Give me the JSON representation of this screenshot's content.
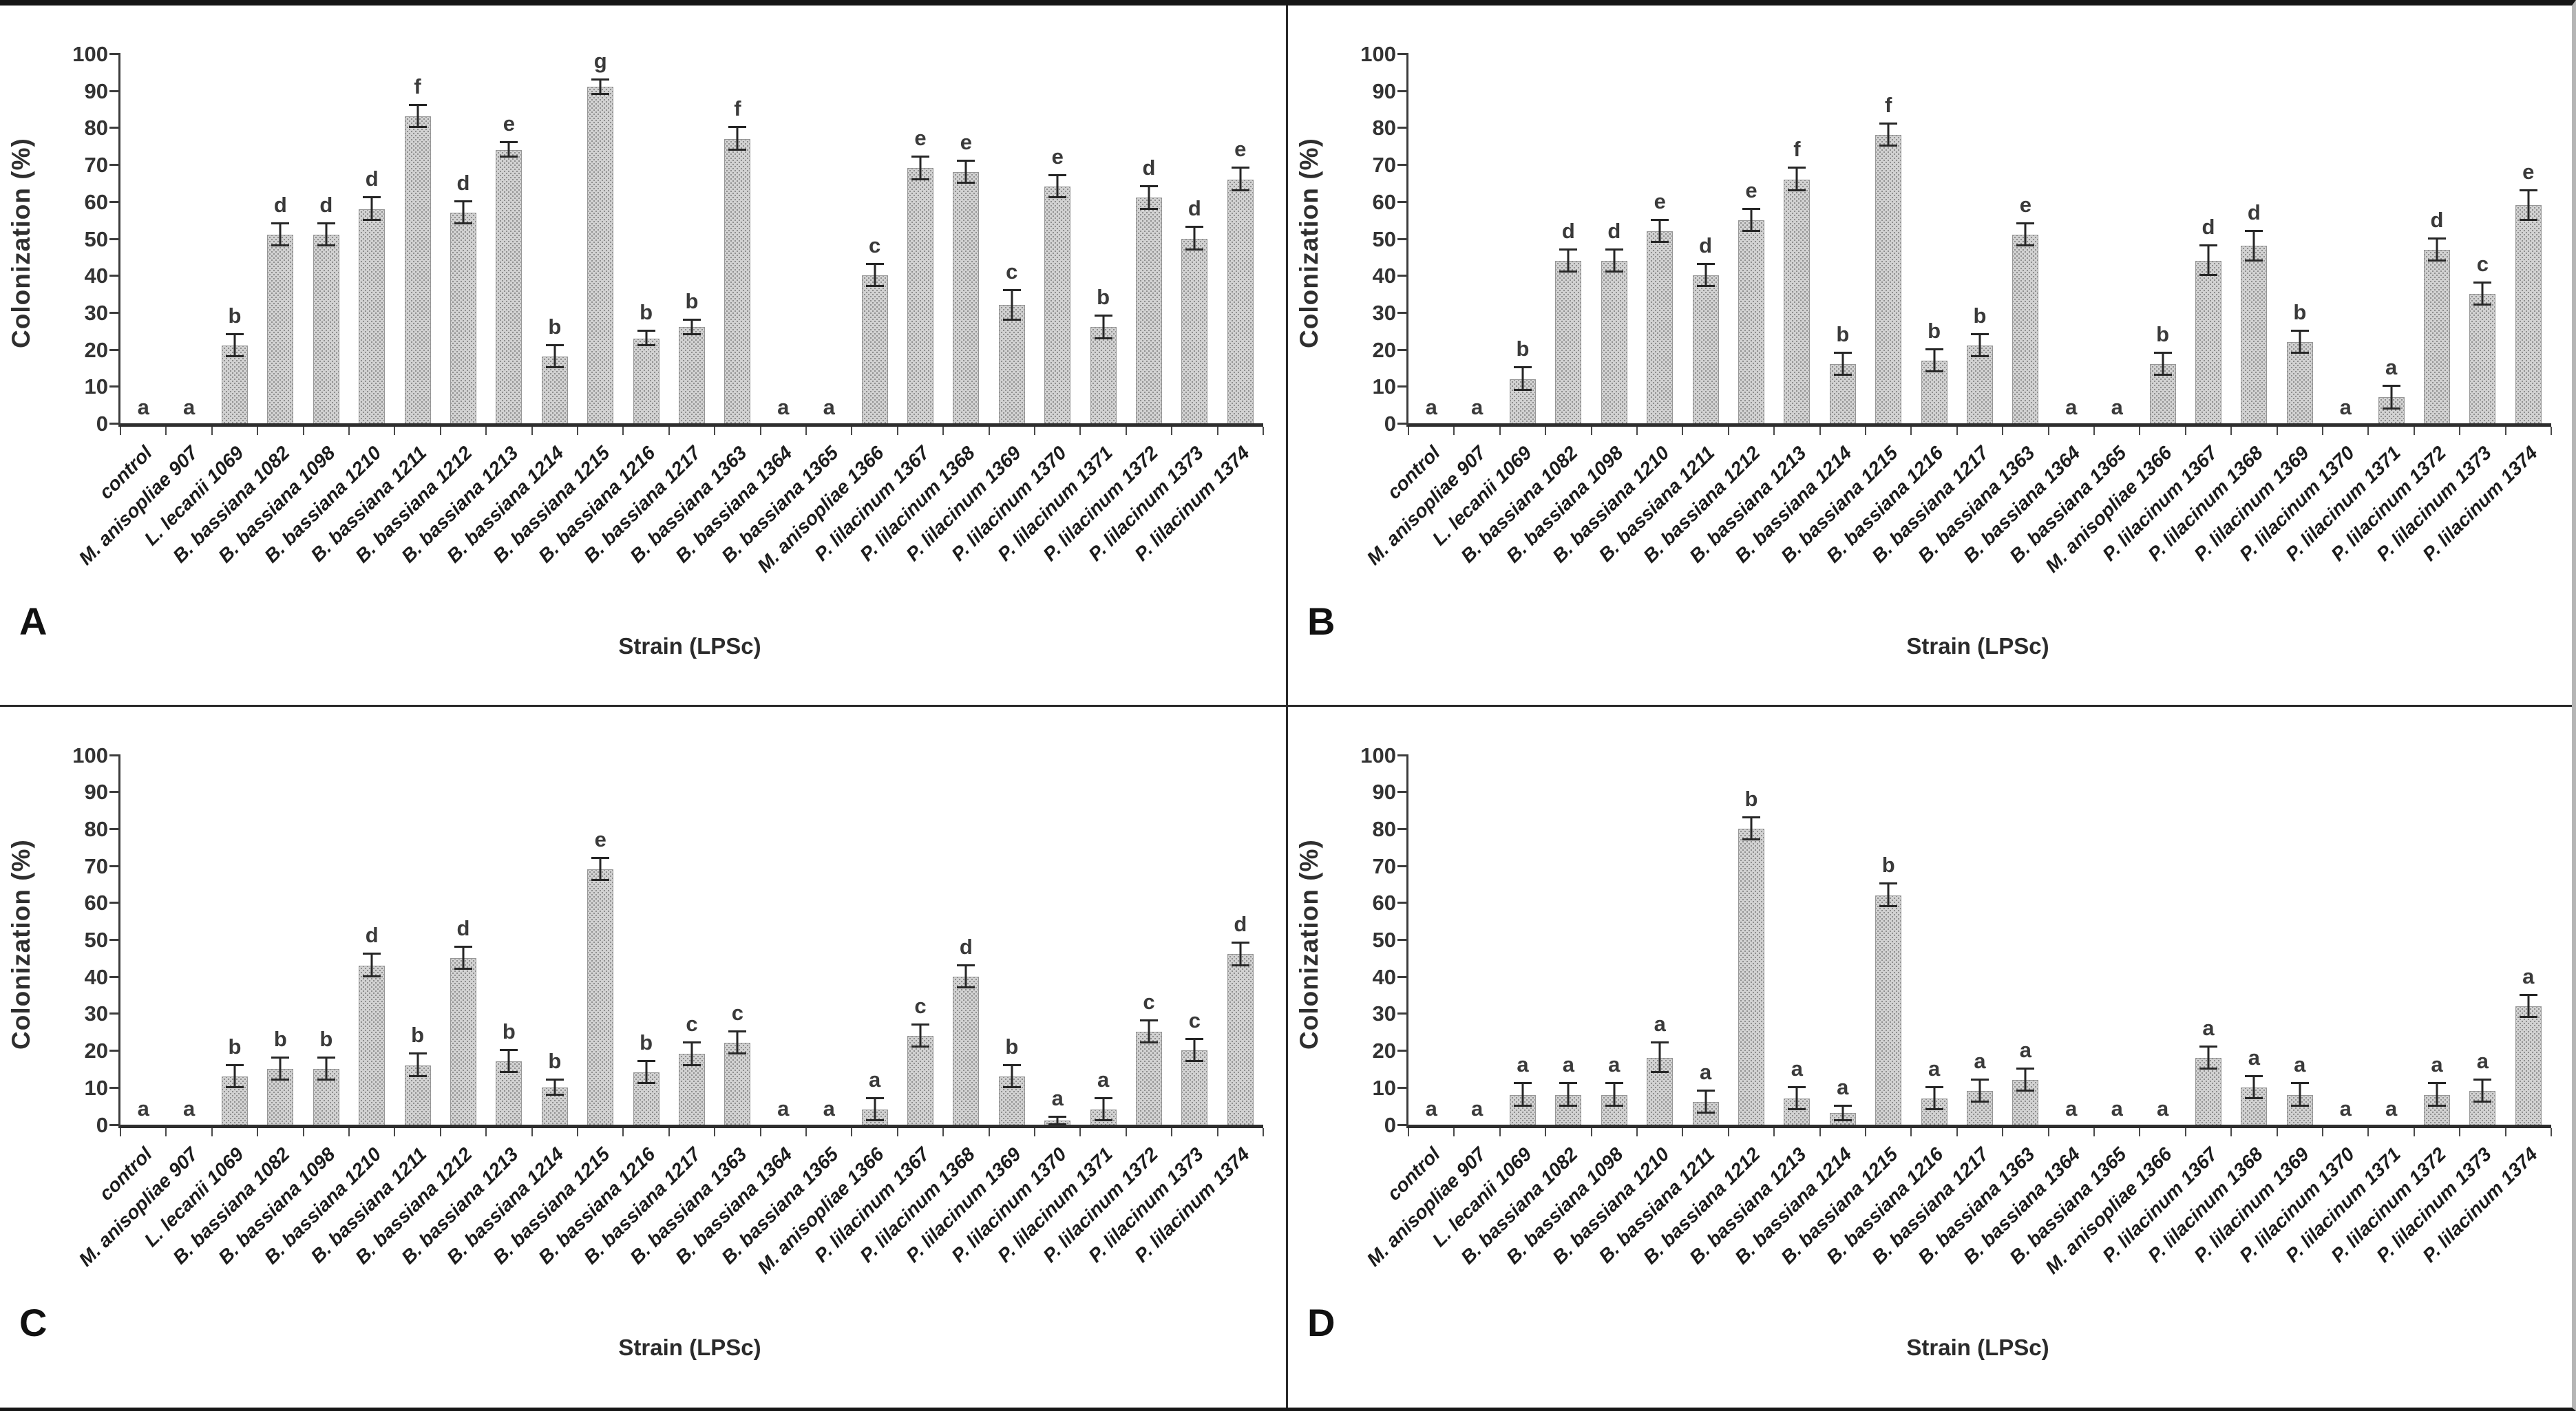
{
  "figure": {
    "background": "#ffffff",
    "frame_color": "#161616",
    "bar_fill": "#d2d2d2",
    "bar_dot_color": "#8e8e8e",
    "bar_border": "#979797",
    "axis_color": "#3c3c3c",
    "error_bar_color": "#262626",
    "text_color": "#222222"
  },
  "chart_data": [
    {
      "panel_label": "A",
      "type": "bar",
      "title": "",
      "xlabel": "Strain (LPSc)",
      "ylabel": "Colonization (%)",
      "ylim": [
        0,
        100
      ],
      "ytick_step": 10,
      "grid": false,
      "legend": false,
      "categories": [
        "control",
        "M. anisopliae 907",
        "L. lecanii 1069",
        "B. bassiana 1082",
        "B. bassiana 1098",
        "B. bassiana 1210",
        "B. bassiana 1211",
        "B. bassiana 1212",
        "B. bassiana 1213",
        "B. bassiana 1214",
        "B. bassiana 1215",
        "B. bassiana 1216",
        "B. bassiana 1217",
        "B. bassiana 1363",
        "B. bassiana 1364",
        "B. bassiana 1365",
        "M. anisopliae 1366",
        "P. lilacinum 1367",
        "P. lilacinum 1368",
        "P. lilacinum 1369",
        "P. lilacinum 1370",
        "P. lilacinum 1371",
        "P. lilacinum 1372",
        "P. lilacinum 1373",
        "P. lilacinum 1374"
      ],
      "values": [
        0,
        0,
        21,
        51,
        51,
        58,
        83,
        57,
        74,
        18,
        91,
        23,
        26,
        77,
        0,
        0,
        40,
        69,
        68,
        32,
        64,
        26,
        61,
        50,
        66
      ],
      "errors": [
        0,
        0,
        3,
        3,
        3,
        3,
        3,
        3,
        2,
        3,
        2,
        2,
        2,
        3,
        0,
        0,
        3,
        3,
        3,
        4,
        3,
        3,
        3,
        3,
        3
      ],
      "letters": [
        "a",
        "a",
        "b",
        "d",
        "d",
        "d",
        "f",
        "d",
        "e",
        "b",
        "g",
        "b",
        "b",
        "f",
        "a",
        "a",
        "c",
        "e",
        "e",
        "c",
        "e",
        "b",
        "d",
        "d",
        "e"
      ]
    },
    {
      "panel_label": "B",
      "type": "bar",
      "title": "",
      "xlabel": "Strain (LPSc)",
      "ylabel": "Colonization (%)",
      "ylim": [
        0,
        100
      ],
      "ytick_step": 10,
      "grid": false,
      "legend": false,
      "categories": [
        "control",
        "M. anisopliae 907",
        "L. lecanii 1069",
        "B. bassiana 1082",
        "B. bassiana 1098",
        "B. bassiana 1210",
        "B. bassiana 1211",
        "B. bassiana 1212",
        "B. bassiana 1213",
        "B. bassiana 1214",
        "B. bassiana 1215",
        "B. bassiana 1216",
        "B. bassiana 1217",
        "B. bassiana 1363",
        "B. bassiana 1364",
        "B. bassiana 1365",
        "M. anisopliae 1366",
        "P. lilacinum 1367",
        "P. lilacinum 1368",
        "P. lilacinum 1369",
        "P. lilacinum 1370",
        "P. lilacinum 1371",
        "P. lilacinum 1372",
        "P. lilacinum 1373",
        "P. lilacinum 1374"
      ],
      "values": [
        0,
        0,
        12,
        44,
        44,
        52,
        40,
        55,
        66,
        16,
        78,
        17,
        21,
        51,
        0,
        0,
        16,
        44,
        48,
        22,
        0,
        7,
        47,
        35,
        59
      ],
      "errors": [
        0,
        0,
        3,
        3,
        3,
        3,
        3,
        3,
        3,
        3,
        3,
        3,
        3,
        3,
        0,
        0,
        3,
        4,
        4,
        3,
        0,
        3,
        3,
        3,
        4
      ],
      "letters": [
        "a",
        "a",
        "b",
        "d",
        "d",
        "e",
        "d",
        "e",
        "f",
        "b",
        "f",
        "b",
        "b",
        "e",
        "a",
        "a",
        "b",
        "d",
        "d",
        "b",
        "a",
        "a",
        "d",
        "c",
        "e"
      ]
    },
    {
      "panel_label": "C",
      "type": "bar",
      "title": "",
      "xlabel": "Strain (LPSc)",
      "ylabel": "Colonization (%)",
      "ylim": [
        0,
        100
      ],
      "ytick_step": 10,
      "grid": false,
      "legend": false,
      "categories": [
        "control",
        "M. anisopliae 907",
        "L. lecanii 1069",
        "B. bassiana 1082",
        "B. bassiana 1098",
        "B. bassiana 1210",
        "B. bassiana 1211",
        "B. bassiana 1212",
        "B. bassiana 1213",
        "B. bassiana 1214",
        "B. bassiana 1215",
        "B. bassiana 1216",
        "B. bassiana 1217",
        "B. bassiana 1363",
        "B. bassiana 1364",
        "B. bassiana 1365",
        "M. anisopliae 1366",
        "P. lilacinum 1367",
        "P. lilacinum 1368",
        "P. lilacinum 1369",
        "P. lilacinum 1370",
        "P. lilacinum 1371",
        "P. lilacinum 1372",
        "P. lilacinum 1373",
        "P. lilacinum 1374"
      ],
      "values": [
        0,
        0,
        13,
        15,
        15,
        43,
        16,
        45,
        17,
        10,
        69,
        14,
        19,
        22,
        0,
        0,
        4,
        24,
        40,
        13,
        1,
        4,
        25,
        20,
        46
      ],
      "errors": [
        0,
        0,
        3,
        3,
        3,
        3,
        3,
        3,
        3,
        2,
        3,
        3,
        3,
        3,
        0,
        0,
        3,
        3,
        3,
        3,
        1,
        3,
        3,
        3,
        3
      ],
      "letters": [
        "a",
        "a",
        "b",
        "b",
        "b",
        "d",
        "b",
        "d",
        "b",
        "b",
        "e",
        "b",
        "c",
        "c",
        "a",
        "a",
        "a",
        "c",
        "d",
        "b",
        "a",
        "a",
        "c",
        "c",
        "d"
      ]
    },
    {
      "panel_label": "D",
      "type": "bar",
      "title": "",
      "xlabel": "Strain (LPSc)",
      "ylabel": "Colonization (%)",
      "ylim": [
        0,
        100
      ],
      "ytick_step": 10,
      "grid": false,
      "legend": false,
      "categories": [
        "control",
        "M. anisopliae 907",
        "L. lecanii 1069",
        "B. bassiana 1082",
        "B. bassiana 1098",
        "B. bassiana 1210",
        "B. bassiana 1211",
        "B. bassiana 1212",
        "B. bassiana 1213",
        "B. bassiana 1214",
        "B. bassiana 1215",
        "B. bassiana 1216",
        "B. bassiana 1217",
        "B. bassiana 1363",
        "B. bassiana 1364",
        "B. bassiana 1365",
        "M. anisopliae 1366",
        "P. lilacinum 1367",
        "P. lilacinum 1368",
        "P. lilacinum 1369",
        "P. lilacinum 1370",
        "P. lilacinum 1371",
        "P. lilacinum 1372",
        "P. lilacinum 1373",
        "P. lilacinum 1374"
      ],
      "values": [
        0,
        0,
        8,
        8,
        8,
        18,
        6,
        80,
        7,
        3,
        62,
        7,
        9,
        12,
        0,
        0,
        0,
        18,
        10,
        8,
        0,
        0,
        8,
        9,
        32
      ],
      "errors": [
        0,
        0,
        3,
        3,
        3,
        4,
        3,
        3,
        3,
        2,
        3,
        3,
        3,
        3,
        0,
        0,
        0,
        3,
        3,
        3,
        0,
        0,
        3,
        3,
        3
      ],
      "letters": [
        "a",
        "a",
        "a",
        "a",
        "a",
        "a",
        "a",
        "b",
        "a",
        "a",
        "b",
        "a",
        "a",
        "a",
        "a",
        "a",
        "a",
        "a",
        "a",
        "a",
        "a",
        "a",
        "a",
        "a",
        "a"
      ]
    }
  ]
}
